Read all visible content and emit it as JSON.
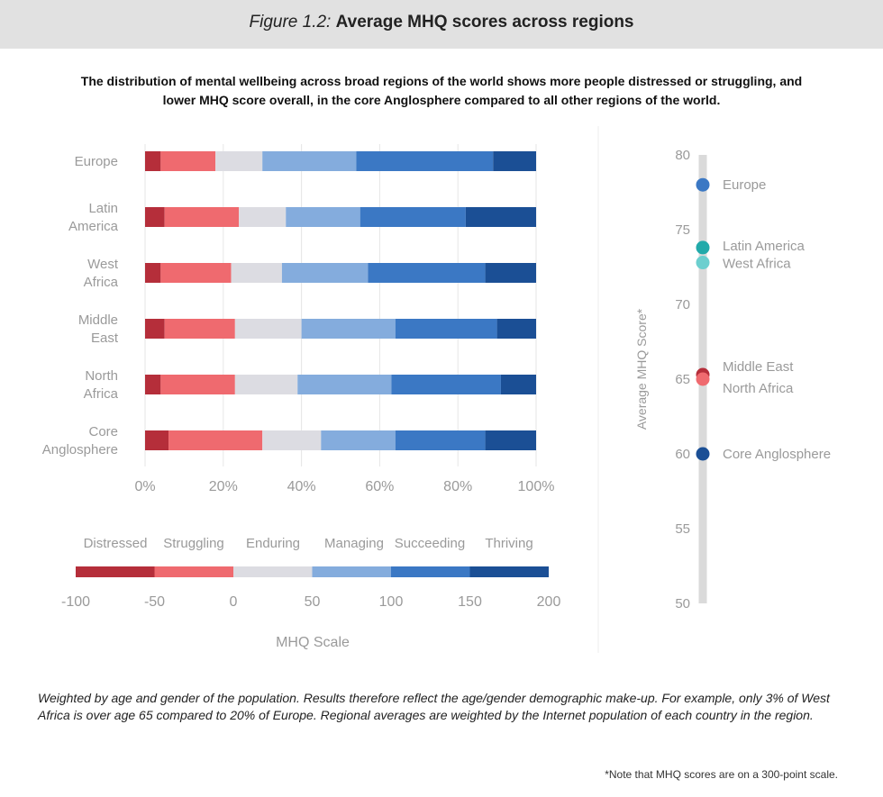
{
  "figure": {
    "label": "Figure 1.2:",
    "title": "Average MHQ scores across regions"
  },
  "subtitle": "The distribution of mental wellbeing across broad regions of the world shows more people distressed or struggling, and lower MHQ score overall, in the core Anglosphere compared to all other regions of the world.",
  "colors": {
    "Distressed": "#b52e3a",
    "Struggling": "#ef6a6f",
    "Enduring": "#dcdce2",
    "Managing": "#84acdd",
    "Succeeding": "#3b78c4",
    "Thriving": "#1b4f95"
  },
  "chart_data": [
    {
      "type": "bar",
      "orientation": "horizontal",
      "stacked": true,
      "categories": [
        "Europe",
        "Latin America",
        "West Africa",
        "Middle East",
        "North Africa",
        "Core Anglosphere"
      ],
      "category_lines": [
        [
          "Europe"
        ],
        [
          "Latin",
          "America"
        ],
        [
          "West",
          "Africa"
        ],
        [
          "Middle",
          "East"
        ],
        [
          "North",
          "Africa"
        ],
        [
          "Core",
          "Anglosphere"
        ]
      ],
      "series": [
        {
          "name": "Distressed",
          "values": [
            4,
            5,
            4,
            5,
            4,
            6
          ]
        },
        {
          "name": "Struggling",
          "values": [
            14,
            19,
            18,
            18,
            19,
            24
          ]
        },
        {
          "name": "Enduring",
          "values": [
            12,
            12,
            13,
            17,
            16,
            15
          ]
        },
        {
          "name": "Managing",
          "values": [
            24,
            19,
            22,
            24,
            24,
            19
          ]
        },
        {
          "name": "Succeeding",
          "values": [
            35,
            27,
            30,
            26,
            28,
            23
          ]
        },
        {
          "name": "Thriving",
          "values": [
            11,
            18,
            13,
            10,
            9,
            13
          ]
        }
      ],
      "xlim": [
        0,
        100
      ],
      "xticks": [
        "0%",
        "20%",
        "40%",
        "60%",
        "80%",
        "100%"
      ],
      "grid": true
    },
    {
      "type": "scatter",
      "ylabel": "Average MHQ Score*",
      "ylim": [
        50,
        80
      ],
      "yticks": [
        50,
        55,
        60,
        65,
        70,
        75,
        80
      ],
      "points": [
        {
          "label": "Europe",
          "value": 78,
          "color": "#3b78c4"
        },
        {
          "label": "Latin America",
          "value": 73.8,
          "color": "#22aaaa"
        },
        {
          "label": "West Africa",
          "value": 72.8,
          "color": "#6ccfcf"
        },
        {
          "label": "Middle East",
          "value": 65.3,
          "color": "#b52e3a"
        },
        {
          "label": "North Africa",
          "value": 65.0,
          "color": "#ef6a6f"
        },
        {
          "label": "Core Anglosphere",
          "value": 60,
          "color": "#1b4f95"
        }
      ]
    }
  ],
  "scale_legend": {
    "labels": [
      "Distressed",
      "Struggling",
      "Enduring",
      "Managing",
      "Succeeding",
      "Thriving"
    ],
    "ticks": [
      "-100",
      "-50",
      "0",
      "50",
      "100",
      "150",
      "200"
    ],
    "title": "MHQ Scale"
  },
  "footnote": "Weighted by age and gender of the population. Results therefore reflect the age/gender demographic make-up. For example, only 3% of West Africa is over age 65 compared to 20% of Europe. Regional averages are weighted by the Internet population of each country in the region.",
  "note": "*Note that MHQ scores are on a 300-point scale."
}
